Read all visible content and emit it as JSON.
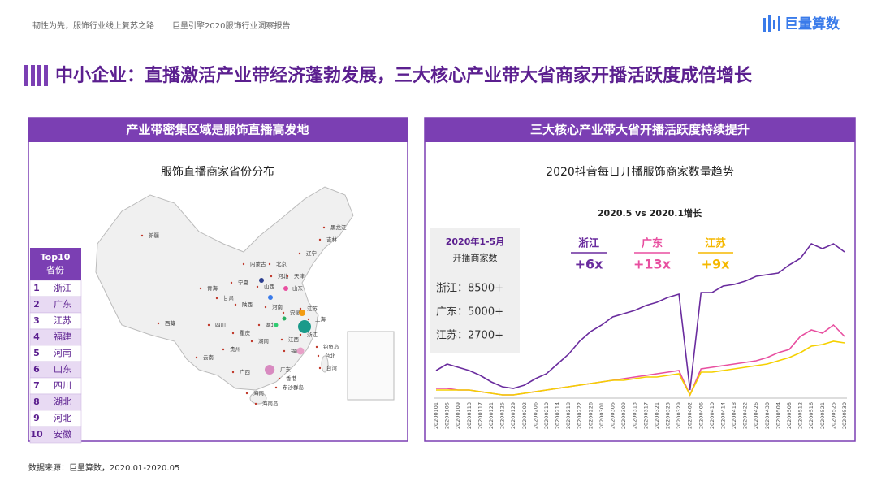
{
  "header": {
    "left": "韧性为先，服饰行业线上复苏之路",
    "right": "巨量引擎2020服饰行业洞察报告",
    "brand": "巨量算数"
  },
  "title": "中小企业：直播激活产业带经济蓬勃发展，三大核心产业带大省商家开播活跃度成倍增长",
  "left_panel": {
    "heading": "产业带密集区域是服饰直播高发地",
    "map_title": "服饰直播商家省份分布",
    "map_labels": [
      "新疆",
      "西藏",
      "青海",
      "甘肃",
      "宁夏",
      "内蒙古",
      "陕西",
      "四川",
      "重庆",
      "云南",
      "贵州",
      "广西",
      "海南",
      "广东",
      "香港",
      "湖南",
      "湖北",
      "江西",
      "福建",
      "浙江",
      "上海",
      "江苏",
      "安徽",
      "山东",
      "河南",
      "河北",
      "山西",
      "北京",
      "天津",
      "辽宁",
      "吉林",
      "黑龙江",
      "台湾",
      "台北",
      "钓鱼岛",
      "东沙群岛",
      "海南岛"
    ],
    "top10": {
      "title": "Top10",
      "subtitle": "省份",
      "rows": [
        [
          "1",
          "浙江"
        ],
        [
          "2",
          "广东"
        ],
        [
          "3",
          "江苏"
        ],
        [
          "4",
          "福建"
        ],
        [
          "5",
          "河南"
        ],
        [
          "6",
          "山东"
        ],
        [
          "7",
          "四川"
        ],
        [
          "8",
          "湖北"
        ],
        [
          "9",
          "河北"
        ],
        [
          "10",
          "安徽"
        ]
      ]
    }
  },
  "right_panel": {
    "heading": "三大核心产业带大省开播活跃度持续提升",
    "callout": {
      "title": "2020年1-5月",
      "subtitle": "开播商家数",
      "items": [
        "浙江：8500+",
        "广东：5000+",
        "江苏：2700+"
      ]
    },
    "growth": [
      {
        "name": "浙江",
        "value": "+6x",
        "color": "#6a2c9e"
      },
      {
        "name": "广东",
        "value": "+13x",
        "color": "#e84fa0"
      },
      {
        "name": "江苏",
        "value": "+9x",
        "color": "#f5b800"
      }
    ]
  },
  "chart_data": {
    "type": "line",
    "title": "2020抖音每日开播服饰商家数量趋势",
    "subtitle": "2020.5 vs 2020.1增长",
    "x": [
      "20200101",
      "20200105",
      "20200109",
      "20200113",
      "20200117",
      "20200121",
      "20200125",
      "20200129",
      "20200202",
      "20200206",
      "20200210",
      "20200214",
      "20200218",
      "20200222",
      "20200226",
      "20200301",
      "20200305",
      "20200309",
      "20200313",
      "20200317",
      "20200321",
      "20200325",
      "20200329",
      "20200402",
      "20200406",
      "20200410",
      "20200414",
      "20200418",
      "20200422",
      "20200426",
      "20200430",
      "20200504",
      "20200508",
      "20200512",
      "20200516",
      "20200521",
      "20200525",
      "20200530"
    ],
    "ylim": [
      0,
      100
    ],
    "series": [
      {
        "name": "浙江",
        "color": "#6a2c9e",
        "values": [
          17,
          21,
          19,
          17,
          14,
          10,
          7,
          6,
          8,
          12,
          15,
          21,
          27,
          35,
          41,
          45,
          50,
          52,
          54,
          57,
          59,
          62,
          64,
          5,
          65,
          65,
          69,
          70,
          72,
          75,
          76,
          77,
          82,
          86,
          95,
          92,
          95,
          90
        ]
      },
      {
        "name": "广东",
        "color": "#e84fa0",
        "values": [
          6,
          6,
          5,
          5,
          4,
          3,
          2,
          2,
          3,
          4,
          5,
          6,
          7,
          8,
          9,
          10,
          11,
          12,
          13,
          14,
          15,
          16,
          17,
          2,
          18,
          19,
          20,
          21,
          22,
          23,
          25,
          28,
          30,
          38,
          42,
          40,
          45,
          38
        ]
      },
      {
        "name": "江苏",
        "color": "#f5d000",
        "values": [
          5,
          5,
          5,
          5,
          4,
          3,
          2,
          2,
          3,
          4,
          5,
          6,
          7,
          8,
          9,
          10,
          11,
          11,
          12,
          13,
          13,
          14,
          15,
          2,
          16,
          16,
          17,
          18,
          19,
          20,
          21,
          23,
          25,
          28,
          32,
          33,
          35,
          34
        ]
      }
    ]
  },
  "footer": "数据来源：巨量算数，2020.01-2020.05"
}
